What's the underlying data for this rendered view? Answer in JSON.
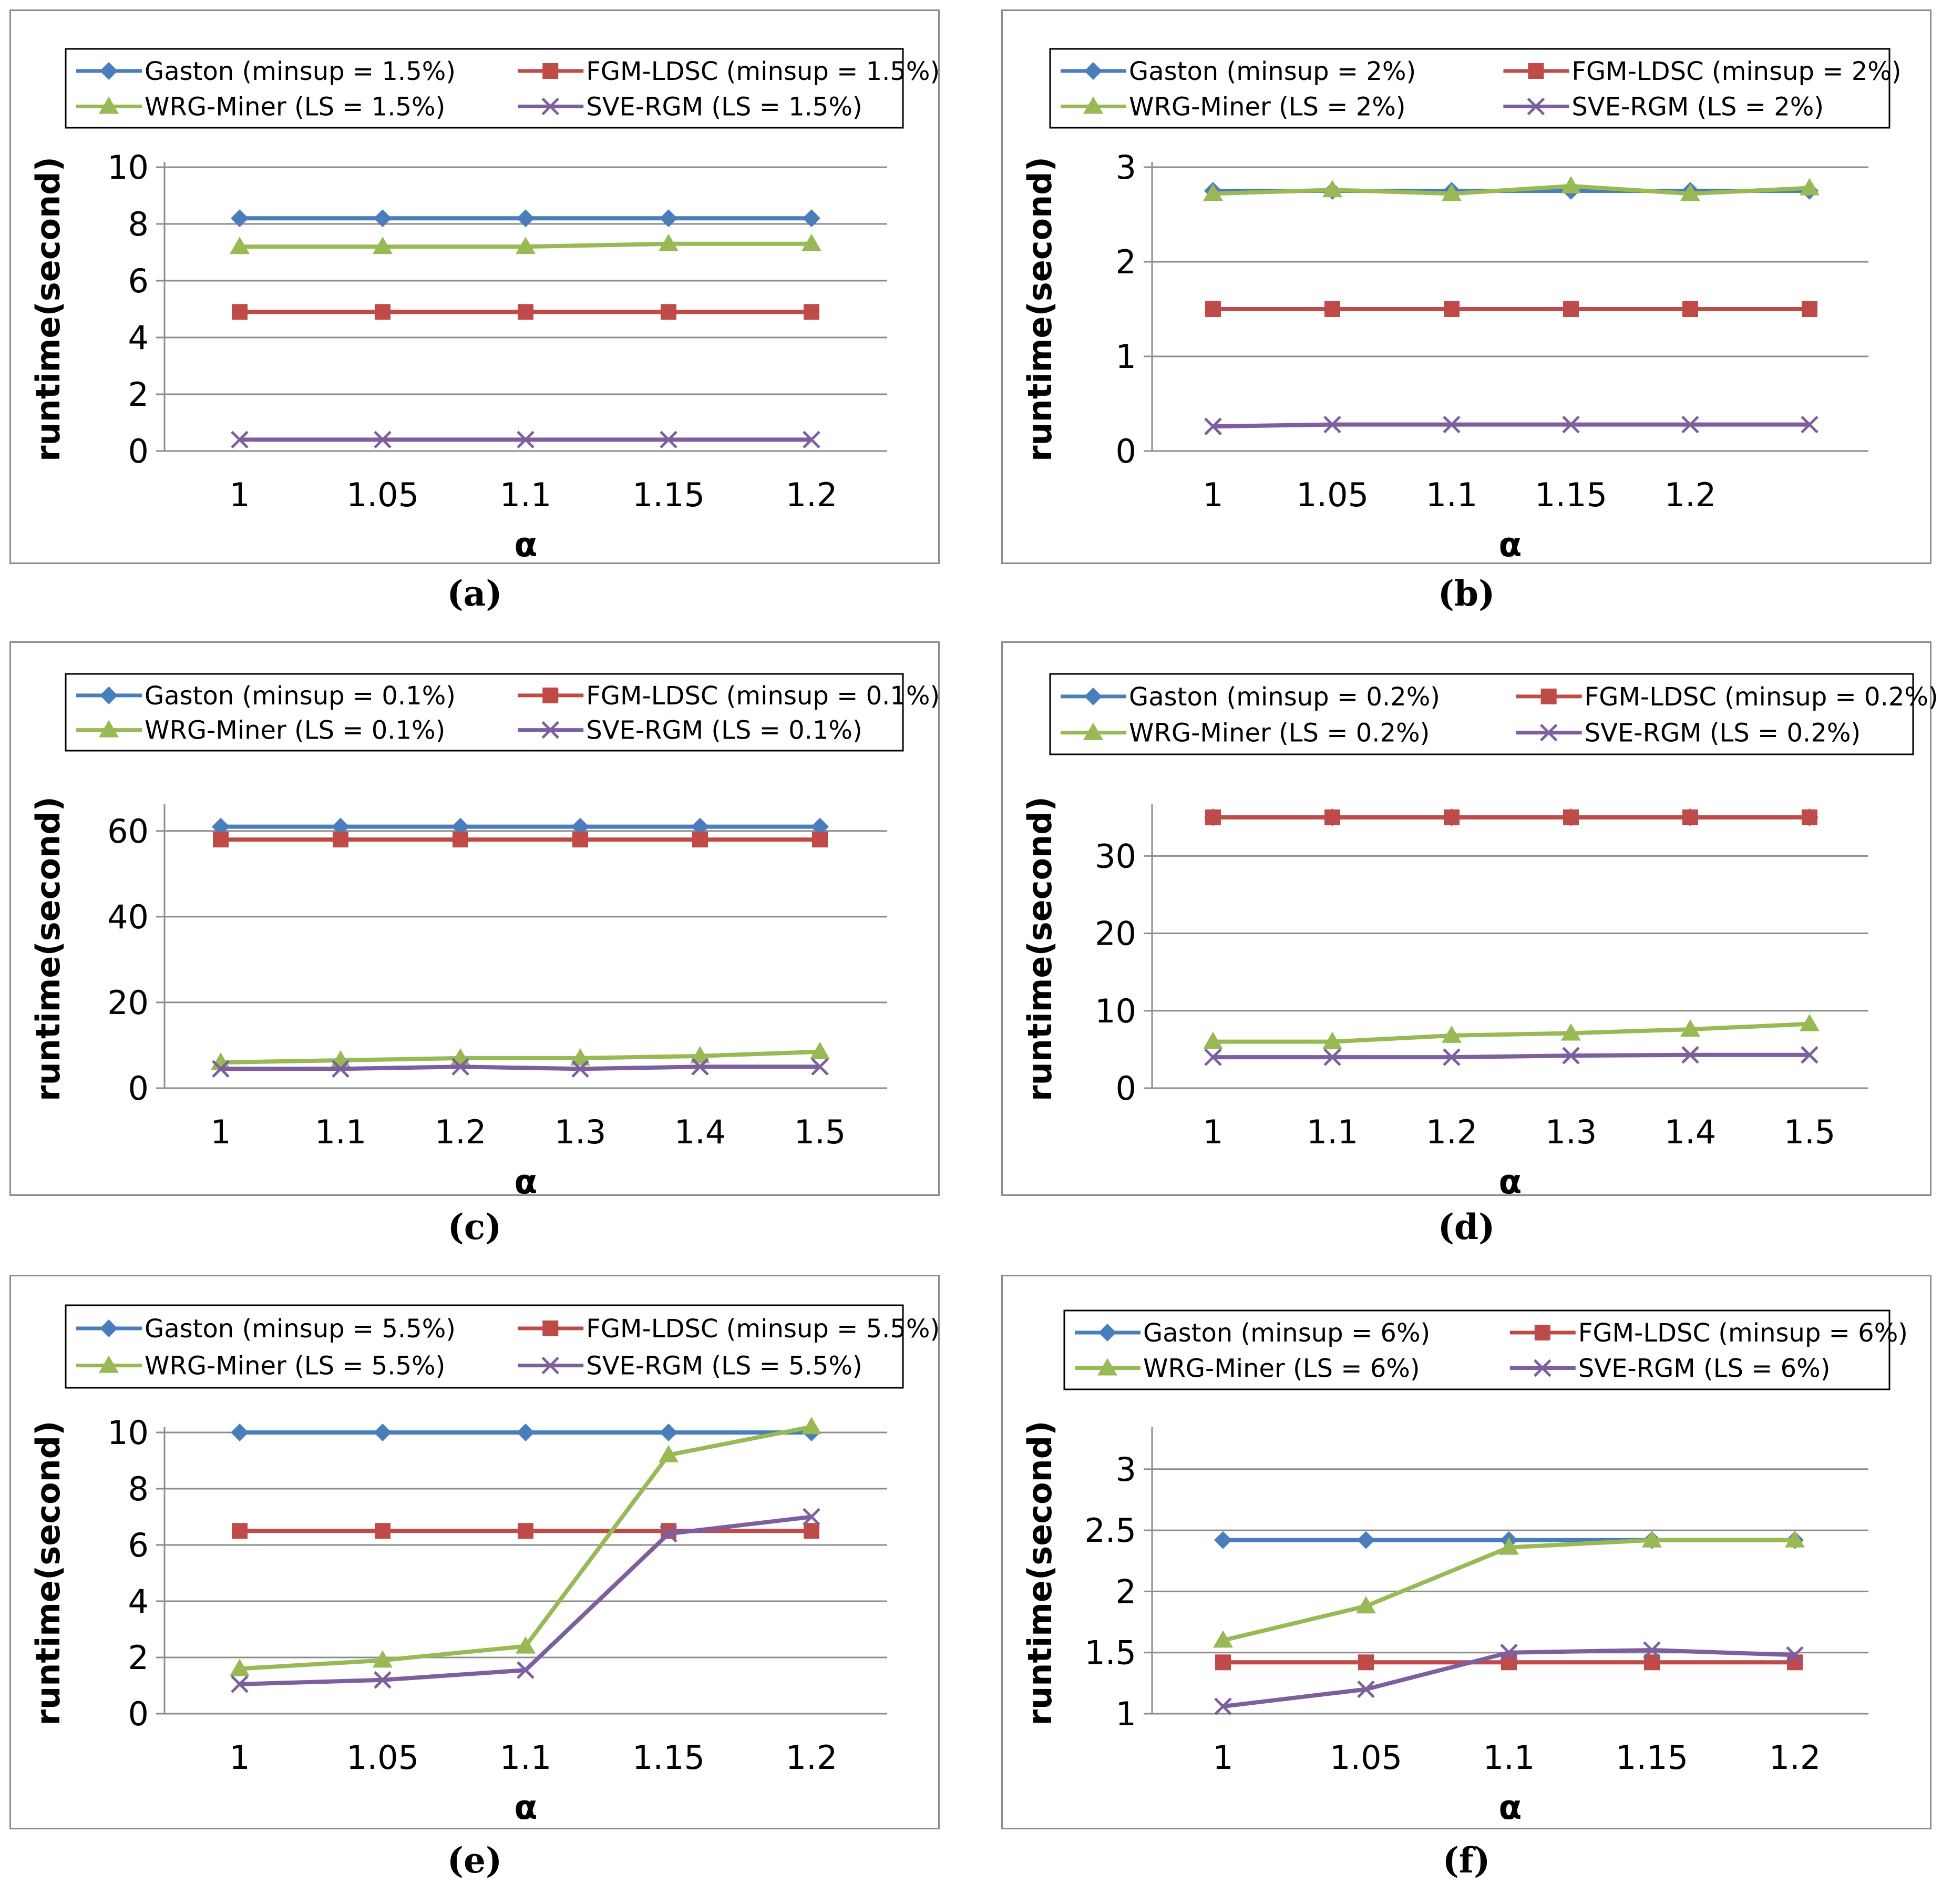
{
  "colors": {
    "gaston": "#4a7ebb",
    "fgm": "#be4b48",
    "wrg": "#98b954",
    "sve": "#7d5fa0",
    "grid": "#8c8c8c",
    "frame": "#8c8c8c"
  },
  "chart_data": [
    {
      "type": "line",
      "caption": "(a)",
      "xlabel": "α",
      "ylabel": "runtime(second)",
      "categories": [
        "1",
        "1.05",
        "1.1",
        "1.15",
        "1.2"
      ],
      "yticks": [
        "0",
        "2",
        "4",
        "6",
        "8",
        "10"
      ],
      "ylim": [
        0,
        10
      ],
      "grid": true,
      "legend_position": "top",
      "series": [
        {
          "name": "Gaston (minsup = 1.5%)",
          "marker": "diamond-icon",
          "values": [
            8.2,
            8.2,
            8.2,
            8.2,
            8.2
          ]
        },
        {
          "name": "FGM-LDSC (minsup = 1.5%)",
          "marker": "square-icon",
          "values": [
            4.9,
            4.9,
            4.9,
            4.9,
            4.9
          ]
        },
        {
          "name": "WRG-Miner (LS = 1.5%)",
          "marker": "triangle-icon",
          "values": [
            7.2,
            7.2,
            7.2,
            7.3,
            7.3
          ]
        },
        {
          "name": "SVE-RGM (LS = 1.5%)",
          "marker": "x-icon",
          "values": [
            0.4,
            0.4,
            0.4,
            0.4,
            0.4
          ]
        }
      ]
    },
    {
      "type": "line",
      "caption": "(b)",
      "xlabel": "α",
      "ylabel": "runtime(second)",
      "categories": [
        "1",
        "1.05",
        "1.1",
        "1.15",
        "1.2",
        ""
      ],
      "yticks": [
        "0",
        "1",
        "2",
        "3"
      ],
      "ylim": [
        0,
        3
      ],
      "grid": true,
      "legend_position": "top",
      "series": [
        {
          "name": "Gaston (minsup = 2%)",
          "marker": "diamond-icon",
          "values": [
            2.75,
            2.75,
            2.75,
            2.75,
            2.75,
            2.75
          ]
        },
        {
          "name": "FGM-LDSC (minsup = 2%)",
          "marker": "square-icon",
          "values": [
            1.5,
            1.5,
            1.5,
            1.5,
            1.5,
            1.5
          ]
        },
        {
          "name": "WRG-Miner (LS = 2%)",
          "marker": "triangle-icon",
          "values": [
            2.72,
            2.76,
            2.72,
            2.8,
            2.72,
            2.78
          ]
        },
        {
          "name": "SVE-RGM (LS = 2%)",
          "marker": "x-icon",
          "values": [
            0.26,
            0.28,
            0.28,
            0.28,
            0.28,
            0.28
          ]
        }
      ]
    },
    {
      "type": "line",
      "caption": "(c)",
      "xlabel": "α",
      "ylabel": "runtime(second)",
      "categories": [
        "1",
        "1.1",
        "1.2",
        "1.3",
        "1.4",
        "1.5"
      ],
      "yticks": [
        "0",
        "20",
        "40",
        "60"
      ],
      "ylim": [
        0,
        65
      ],
      "grid": true,
      "legend_position": "top",
      "series": [
        {
          "name": "Gaston (minsup = 0.1%)",
          "marker": "diamond-icon",
          "values": [
            61,
            61,
            61,
            61,
            61,
            61
          ]
        },
        {
          "name": "FGM-LDSC (minsup = 0.1%)",
          "marker": "square-icon",
          "values": [
            58,
            58,
            58,
            58,
            58,
            58
          ]
        },
        {
          "name": "WRG-Miner (LS = 0.1%)",
          "marker": "triangle-icon",
          "values": [
            6,
            6.5,
            7,
            7,
            7.5,
            8.5
          ]
        },
        {
          "name": "SVE-RGM (LS = 0.1%)",
          "marker": "x-icon",
          "values": [
            4.5,
            4.5,
            5,
            4.5,
            5,
            5
          ]
        }
      ]
    },
    {
      "type": "line",
      "caption": "(d)",
      "xlabel": "α",
      "ylabel": "runtime(second)",
      "categories": [
        "1",
        "1.1",
        "1.2",
        "1.3",
        "1.4",
        "1.5"
      ],
      "yticks": [
        "0",
        "10",
        "20",
        "30"
      ],
      "ylim": [
        0,
        36
      ],
      "grid": true,
      "legend_position": "top",
      "series": [
        {
          "name": "Gaston (minsup = 0.2%)",
          "marker": "diamond-icon",
          "values": [
            35,
            35,
            35,
            35,
            35,
            35
          ]
        },
        {
          "name": "FGM-LDSC (minsup = 0.2%)",
          "marker": "square-icon",
          "values": [
            35,
            35,
            35,
            35,
            35,
            35
          ]
        },
        {
          "name": "WRG-Miner (LS = 0.2%)",
          "marker": "triangle-icon",
          "values": [
            6,
            6,
            6.8,
            7.1,
            7.6,
            8.3
          ]
        },
        {
          "name": "SVE-RGM (LS = 0.2%)",
          "marker": "x-icon",
          "values": [
            4,
            4,
            4,
            4.2,
            4.3,
            4.3
          ]
        }
      ]
    },
    {
      "type": "line",
      "caption": "(e)",
      "xlabel": "α",
      "ylabel": "runtime(second)",
      "categories": [
        "1",
        "1.05",
        "1.1",
        "1.15",
        "1.2"
      ],
      "yticks": [
        "0",
        "2",
        "4",
        "6",
        "8",
        "10"
      ],
      "ylim": [
        0,
        10
      ],
      "grid": true,
      "legend_position": "top",
      "series": [
        {
          "name": "Gaston (minsup = 5.5%)",
          "marker": "diamond-icon",
          "values": [
            10,
            10,
            10,
            10,
            10
          ]
        },
        {
          "name": "FGM-LDSC (minsup = 5.5%)",
          "marker": "square-icon",
          "values": [
            6.5,
            6.5,
            6.5,
            6.5,
            6.5
          ]
        },
        {
          "name": "WRG-Miner (LS = 5.5%)",
          "marker": "triangle-icon",
          "values": [
            1.6,
            1.9,
            2.4,
            9.2,
            10.2
          ]
        },
        {
          "name": "SVE-RGM (LS = 5.5%)",
          "marker": "x-icon",
          "values": [
            1.05,
            1.2,
            1.55,
            6.4,
            7.0
          ]
        }
      ]
    },
    {
      "type": "line",
      "caption": "(f)",
      "xlabel": "α",
      "ylabel": "runtime(second)",
      "categories": [
        "1",
        "1.05",
        "1.1",
        "1.15",
        "1.2"
      ],
      "yticks": [
        "1",
        "1.5",
        "2",
        "2.5",
        "3"
      ],
      "ylim": [
        1,
        3.3
      ],
      "grid": true,
      "legend_position": "top",
      "series": [
        {
          "name": "Gaston (minsup = 6%)",
          "marker": "diamond-icon",
          "values": [
            2.42,
            2.42,
            2.42,
            2.42,
            2.42
          ]
        },
        {
          "name": "FGM-LDSC (minsup = 6%)",
          "marker": "square-icon",
          "values": [
            1.42,
            1.42,
            1.42,
            1.42,
            1.42
          ]
        },
        {
          "name": "WRG-Miner (LS = 6%)",
          "marker": "triangle-icon",
          "values": [
            1.6,
            1.88,
            2.36,
            2.42,
            2.42
          ]
        },
        {
          "name": "SVE-RGM (LS = 6%)",
          "marker": "x-icon",
          "values": [
            1.06,
            1.2,
            1.5,
            1.52,
            1.48
          ]
        }
      ]
    }
  ]
}
